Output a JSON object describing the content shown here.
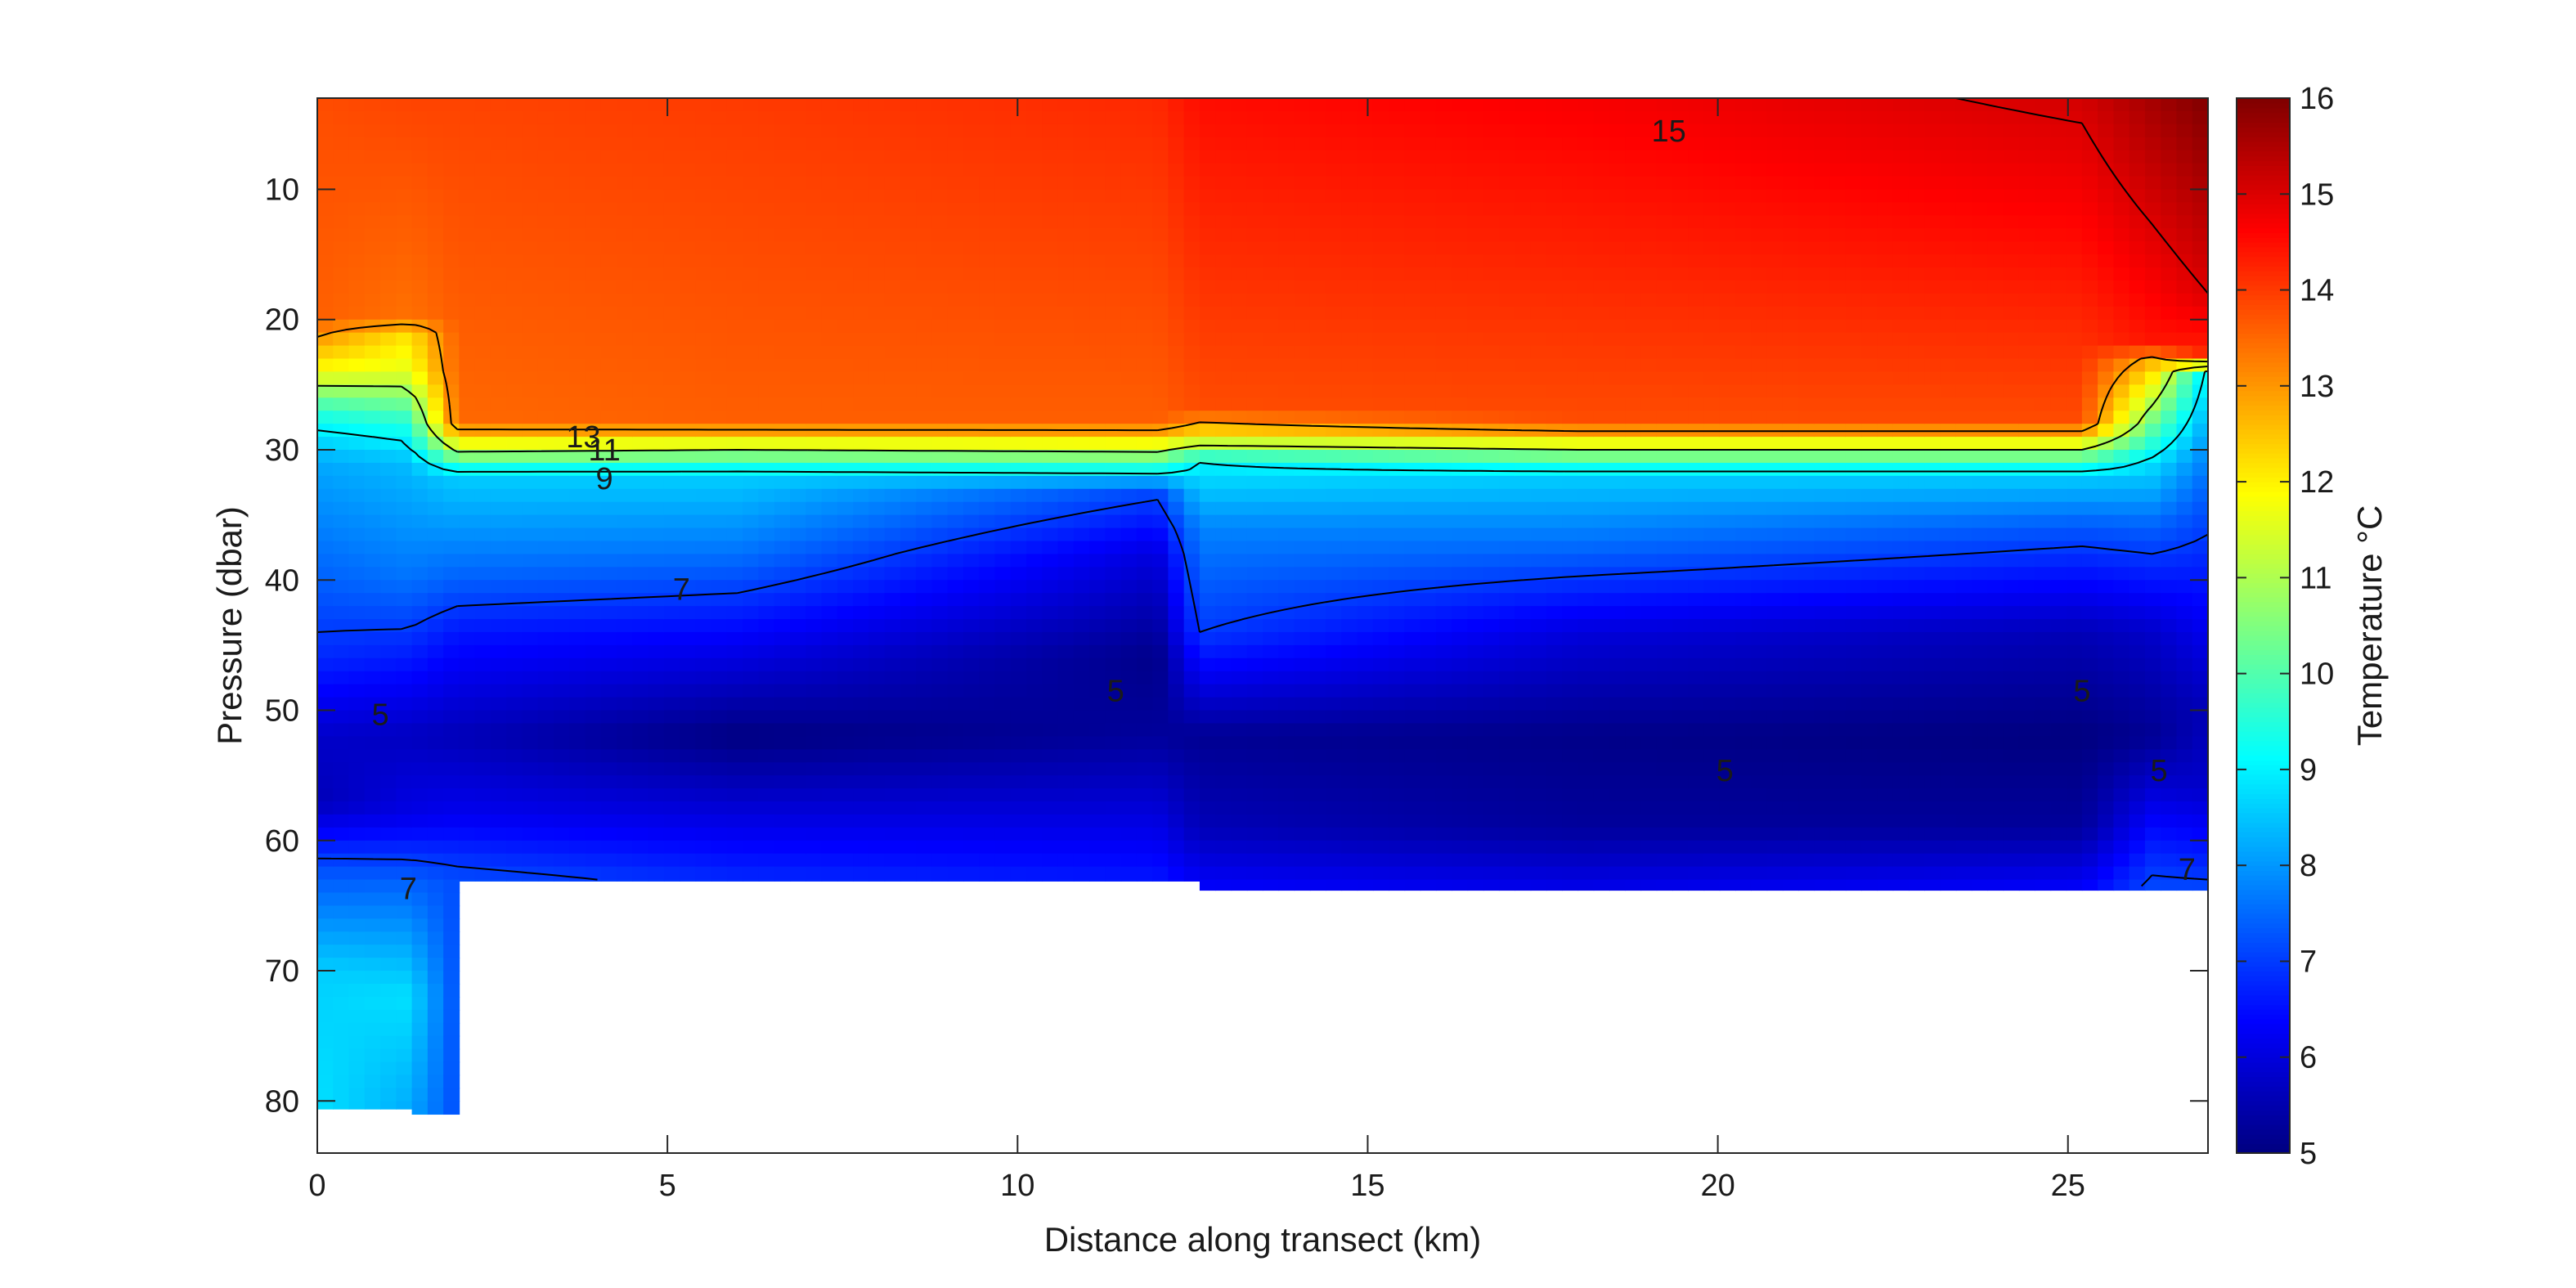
{
  "chart_data": {
    "type": "heatmap",
    "title": "",
    "xlabel": "Distance along transect (km)",
    "ylabel": "Pressure (dbar)",
    "xlim": [
      0,
      27
    ],
    "ylim": [
      3,
      84
    ],
    "y_reversed": true,
    "x_ticks": [
      "0",
      "5",
      "10",
      "15",
      "20",
      "25"
    ],
    "x_tick_values": [
      0,
      5,
      10,
      15,
      20,
      25
    ],
    "y_ticks": [
      "10",
      "20",
      "30",
      "40",
      "50",
      "60",
      "70",
      "80"
    ],
    "y_tick_values": [
      10,
      20,
      30,
      40,
      50,
      60,
      70,
      80
    ],
    "colorbar": {
      "label": "Temperature °C",
      "colormap": "jet",
      "range": [
        5,
        16
      ],
      "ticks": [
        "5",
        "6",
        "7",
        "8",
        "9",
        "10",
        "11",
        "12",
        "13",
        "14",
        "15",
        "16"
      ],
      "tick_values": [
        5,
        6,
        7,
        8,
        9,
        10,
        11,
        12,
        13,
        14,
        15,
        16
      ]
    },
    "contour_levels": [
      5,
      7,
      9,
      11,
      13,
      15
    ],
    "contour_labels": [
      {
        "text": "15",
        "x": 19.3,
        "y": 5.5
      },
      {
        "text": "13",
        "x": 3.8,
        "y": 29.0
      },
      {
        "text": "11",
        "x": 4.1,
        "y": 30.0
      },
      {
        "text": "9",
        "x": 4.1,
        "y": 32.2
      },
      {
        "text": "7",
        "x": 5.2,
        "y": 40.7
      },
      {
        "text": "7",
        "x": 1.3,
        "y": 63.7
      },
      {
        "text": "7",
        "x": 26.7,
        "y": 62.2
      },
      {
        "text": "5",
        "x": 0.9,
        "y": 50.3
      },
      {
        "text": "5",
        "x": 11.4,
        "y": 48.5
      },
      {
        "text": "5",
        "x": 20.1,
        "y": 54.6
      },
      {
        "text": "5",
        "x": 25.2,
        "y": 48.5
      },
      {
        "text": "5",
        "x": 26.3,
        "y": 54.6
      }
    ],
    "data_extent": [
      {
        "x0": 0,
        "x1": 1.3,
        "bottom": 80.6
      },
      {
        "x0": 1.3,
        "x1": 2.0,
        "bottom": 81.0
      },
      {
        "x0": 2.0,
        "x1": 12.5,
        "bottom": 63.1
      },
      {
        "x0": 12.5,
        "x1": 27.0,
        "bottom": 63.8
      }
    ],
    "temperature_profiles": [
      {
        "x": 0.0,
        "depths": [
          3,
          20,
          24,
          27,
          29,
          31,
          40,
          46,
          52,
          57,
          62,
          70,
          80
        ],
        "temps": [
          13.8,
          13.6,
          11.8,
          9.6,
          8.8,
          8.2,
          7.4,
          6.8,
          5.8,
          5.6,
          7.2,
          8.6,
          8.8
        ]
      },
      {
        "x": 1.3,
        "depths": [
          3,
          20,
          21,
          24,
          28,
          31,
          40,
          45,
          52,
          58,
          63,
          72,
          81
        ],
        "temps": [
          13.9,
          13.4,
          12.2,
          11.6,
          9.5,
          8.4,
          7.6,
          6.8,
          5.7,
          6.1,
          7.4,
          8.8,
          8.2
        ]
      },
      {
        "x": 2.0,
        "depths": [
          3,
          28,
          30,
          32,
          40,
          44,
          52,
          58,
          63
        ],
        "temps": [
          13.9,
          13.5,
          11.2,
          8.6,
          7.4,
          6.6,
          5.6,
          6.2,
          7.2
        ]
      },
      {
        "x": 6.0,
        "depths": [
          3,
          28,
          30,
          32,
          38,
          44,
          52,
          58,
          63
        ],
        "temps": [
          14.0,
          13.6,
          11.0,
          8.6,
          7.6,
          6.4,
          5.0,
          6.0,
          6.8
        ]
      },
      {
        "x": 12.0,
        "depths": [
          3,
          28,
          30,
          32,
          33,
          38,
          46,
          52,
          58,
          63
        ],
        "temps": [
          14.2,
          13.6,
          11.2,
          8.8,
          7.2,
          6.0,
          5.1,
          5.3,
          6.0,
          6.6
        ]
      },
      {
        "x": 12.6,
        "depths": [
          3,
          27,
          29,
          31,
          36,
          44,
          52,
          59,
          64
        ],
        "temps": [
          14.5,
          13.8,
          12.0,
          9.0,
          7.8,
          7.0,
          5.2,
          5.6,
          6.4
        ]
      },
      {
        "x": 18.0,
        "depths": [
          3,
          28,
          30,
          32,
          38,
          44,
          52,
          59,
          64
        ],
        "temps": [
          14.7,
          13.8,
          11.0,
          8.6,
          7.4,
          6.0,
          5.1,
          5.3,
          6.2
        ]
      },
      {
        "x": 25.2,
        "depths": [
          3,
          28,
          30,
          32,
          36,
          44,
          52,
          59,
          64
        ],
        "temps": [
          15.1,
          13.8,
          11.0,
          8.6,
          7.3,
          5.6,
          5.0,
          5.3,
          6.4
        ]
      },
      {
        "x": 26.2,
        "depths": [
          3,
          8,
          22,
          23,
          27,
          31,
          36,
          44,
          52,
          60,
          64
        ],
        "temps": [
          15.6,
          15.3,
          14.4,
          12.8,
          10.8,
          8.8,
          7.4,
          5.8,
          5.2,
          6.6,
          7.2
        ]
      },
      {
        "x": 27.0,
        "depths": [
          3,
          18,
          23,
          24,
          28,
          33,
          40,
          50,
          56,
          62,
          64
        ],
        "temps": [
          16.0,
          15.0,
          14.2,
          8.8,
          8.2,
          7.4,
          6.6,
          5.6,
          5.8,
          6.8,
          7.2
        ]
      }
    ]
  }
}
